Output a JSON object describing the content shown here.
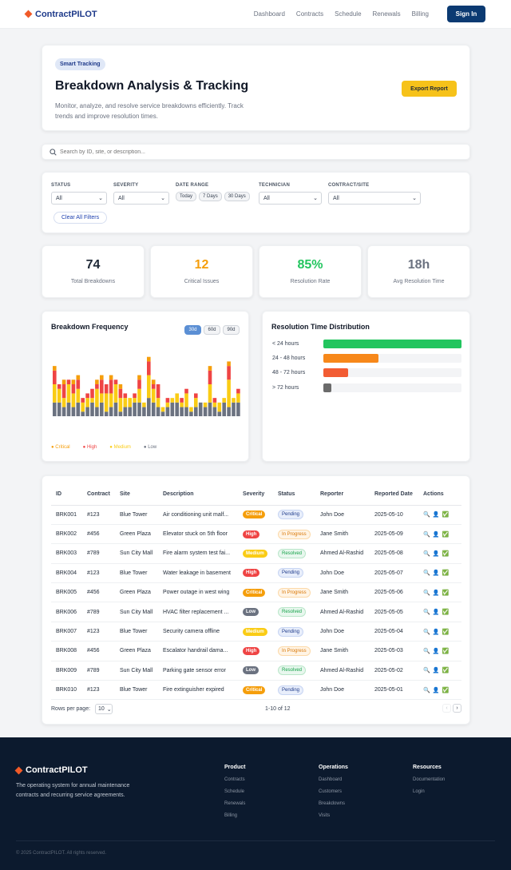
{
  "nav": {
    "brand": "ContractPILOT",
    "links": [
      "Dashboard",
      "Contracts",
      "Schedule",
      "Renewals",
      "Billing"
    ],
    "signin": "Sign In"
  },
  "hero": {
    "badge": "Smart Tracking",
    "title": "Breakdown Analysis & Tracking",
    "subtitle": "Monitor, analyze, and resolve service breakdowns efficiently. Track trends and improve resolution times.",
    "export": "Export Report"
  },
  "search": {
    "placeholder": "Search by ID, site, or description..."
  },
  "filters": {
    "status": {
      "label": "STATUS",
      "value": "All"
    },
    "severity": {
      "label": "SEVERITY",
      "value": "All"
    },
    "date_range": {
      "label": "DATE RANGE",
      "options": [
        "Today",
        "7 Days",
        "30 Days"
      ]
    },
    "technician": {
      "label": "TECHNICIAN",
      "value": "All"
    },
    "contract_site": {
      "label": "CONTRACT/SITE",
      "value": "All"
    },
    "clear": "Clear All Filters"
  },
  "stats": [
    {
      "value": "74",
      "label": "Total Breakdowns",
      "color": "#1f2937"
    },
    {
      "value": "12",
      "label": "Critical Issues",
      "color": "#f59e0b"
    },
    {
      "value": "85%",
      "label": "Resolution Rate",
      "color": "#22c55e"
    },
    {
      "value": "18h",
      "label": "Avg Resolution Time",
      "color": "#6b7280"
    }
  ],
  "frequency_chart": {
    "title": "Breakdown Frequency",
    "ranges": [
      "30d",
      "60d",
      "90d"
    ],
    "active_range": "30d",
    "legend": [
      {
        "name": "Critical",
        "color": "#f59e0b"
      },
      {
        "name": "High",
        "color": "#ef4444"
      },
      {
        "name": "Medium",
        "color": "#facc15"
      },
      {
        "name": "Low",
        "color": "#6b7280"
      }
    ]
  },
  "resolution_chart": {
    "title": "Resolution Time Distribution",
    "rows": [
      {
        "label": "< 24 hours",
        "value": 1.0,
        "color": "#22c55e"
      },
      {
        "label": "24 - 48 hours",
        "value": 0.4,
        "color": "#f7881a"
      },
      {
        "label": "48 - 72 hours",
        "value": 0.18,
        "color": "#f25c33"
      },
      {
        "label": "> 72 hours",
        "value": 0.06,
        "color": "#6b6b6b"
      }
    ]
  },
  "chart_data": {
    "type": "bar",
    "stacked": true,
    "series": [
      {
        "name": "Low",
        "color": "#6b7280",
        "values": [
          3,
          3,
          2,
          3,
          2,
          3,
          1,
          2,
          3,
          2,
          3,
          1,
          2,
          3,
          1,
          2,
          2,
          3,
          3,
          2,
          4,
          3,
          2,
          1,
          2,
          3,
          3,
          2,
          2,
          1,
          2,
          3,
          2,
          3,
          2,
          1,
          3,
          2,
          3,
          3
        ]
      },
      {
        "name": "Medium",
        "color": "#facc15",
        "values": [
          4,
          3,
          2,
          4,
          3,
          3,
          2,
          2,
          1,
          4,
          2,
          4,
          3,
          4,
          3,
          2,
          2,
          1,
          3,
          1,
          5,
          3,
          2,
          1,
          1,
          1,
          2,
          1,
          3,
          1,
          2,
          0,
          1,
          4,
          1,
          2,
          1,
          6,
          1,
          2
        ]
      },
      {
        "name": "High",
        "color": "#ef4444",
        "values": [
          3,
          1,
          3,
          1,
          2,
          2,
          1,
          1,
          2,
          1,
          3,
          2,
          3,
          1,
          2,
          1,
          0,
          1,
          2,
          0,
          3,
          1,
          3,
          0,
          1,
          0,
          0,
          1,
          1,
          0,
          1,
          0,
          0,
          3,
          1,
          0,
          0,
          3,
          0,
          1
        ]
      },
      {
        "name": "Critical",
        "color": "#f59e0b",
        "values": [
          1,
          0,
          1,
          0,
          1,
          1,
          0,
          0,
          0,
          1,
          1,
          0,
          1,
          0,
          1,
          0,
          0,
          0,
          1,
          0,
          1,
          1,
          0,
          0,
          0,
          0,
          0,
          0,
          0,
          0,
          0,
          0,
          0,
          1,
          0,
          0,
          0,
          1,
          0,
          0
        ]
      }
    ],
    "ylim": [
      0,
      14
    ]
  },
  "table": {
    "columns": [
      "ID",
      "Contract",
      "Site",
      "Description",
      "Severity",
      "Status",
      "Reporter",
      "Reported Date",
      "Actions"
    ],
    "rows": [
      {
        "id": "BRK001",
        "contract": "#123",
        "site": "Blue Tower",
        "desc": "Air conditioning unit malf...",
        "sev": "Critical",
        "status": "Pending",
        "reporter": "John Doe",
        "date": "2025-05-10"
      },
      {
        "id": "BRK002",
        "contract": "#456",
        "site": "Green Plaza",
        "desc": "Elevator stuck on 5th floor",
        "sev": "High",
        "status": "In Progress",
        "reporter": "Jane Smith",
        "date": "2025-05-09"
      },
      {
        "id": "BRK003",
        "contract": "#789",
        "site": "Sun City Mall",
        "desc": "Fire alarm system test fai...",
        "sev": "Medium",
        "status": "Resolved",
        "reporter": "Ahmed Al-Rashid",
        "date": "2025-05-08"
      },
      {
        "id": "BRK004",
        "contract": "#123",
        "site": "Blue Tower",
        "desc": "Water leakage in basement",
        "sev": "High",
        "status": "Pending",
        "reporter": "John Doe",
        "date": "2025-05-07"
      },
      {
        "id": "BRK005",
        "contract": "#456",
        "site": "Green Plaza",
        "desc": "Power outage in west wing",
        "sev": "Critical",
        "status": "In Progress",
        "reporter": "Jane Smith",
        "date": "2025-05-06"
      },
      {
        "id": "BRK006",
        "contract": "#789",
        "site": "Sun City Mall",
        "desc": "HVAC filter replacement ...",
        "sev": "Low",
        "status": "Resolved",
        "reporter": "Ahmed Al-Rashid",
        "date": "2025-05-05"
      },
      {
        "id": "BRK007",
        "contract": "#123",
        "site": "Blue Tower",
        "desc": "Security camera offline",
        "sev": "Medium",
        "status": "Pending",
        "reporter": "John Doe",
        "date": "2025-05-04"
      },
      {
        "id": "BRK008",
        "contract": "#456",
        "site": "Green Plaza",
        "desc": "Escalator handrail dama...",
        "sev": "High",
        "status": "In Progress",
        "reporter": "Jane Smith",
        "date": "2025-05-03"
      },
      {
        "id": "BRK009",
        "contract": "#789",
        "site": "Sun City Mall",
        "desc": "Parking gate sensor error",
        "sev": "Low",
        "status": "Resolved",
        "reporter": "Ahmed Al-Rashid",
        "date": "2025-05-02"
      },
      {
        "id": "BRK010",
        "contract": "#123",
        "site": "Blue Tower",
        "desc": "Fire extinguisher expired",
        "sev": "Critical",
        "status": "Pending",
        "reporter": "John Doe",
        "date": "2025-05-01"
      }
    ],
    "severity_colors": {
      "Critical": "#f59e0b",
      "High": "#ef4444",
      "Medium": "#facc15",
      "Low": "#6b7280"
    },
    "status_styles": {
      "Pending": {
        "bg": "#e8eefb",
        "fg": "#1e3a8a",
        "border": "#c7d5f3"
      },
      "In Progress": {
        "bg": "#fff4e5",
        "fg": "#d97706",
        "border": "#fcd9a8"
      },
      "Resolved": {
        "bg": "#e8f7ee",
        "fg": "#16a34a",
        "border": "#b9e6c9"
      }
    },
    "pager": {
      "rows_label": "Rows per page:",
      "rows_value": "10",
      "info": "1-10 of 12"
    }
  },
  "footer": {
    "brand": "ContractPILOT",
    "desc": "The operating system for annual maintenance contracts and recurring service agreements.",
    "cols": [
      {
        "title": "Product",
        "items": [
          "Contracts",
          "Schedule",
          "Renewals",
          "Billing"
        ]
      },
      {
        "title": "Operations",
        "items": [
          "Dashboard",
          "Customers",
          "Breakdowns",
          "Visits"
        ]
      },
      {
        "title": "Resources",
        "items": [
          "Documentation",
          "Login"
        ]
      }
    ],
    "copyright": "© 2025 ContractPILOT. All rights reserved."
  }
}
